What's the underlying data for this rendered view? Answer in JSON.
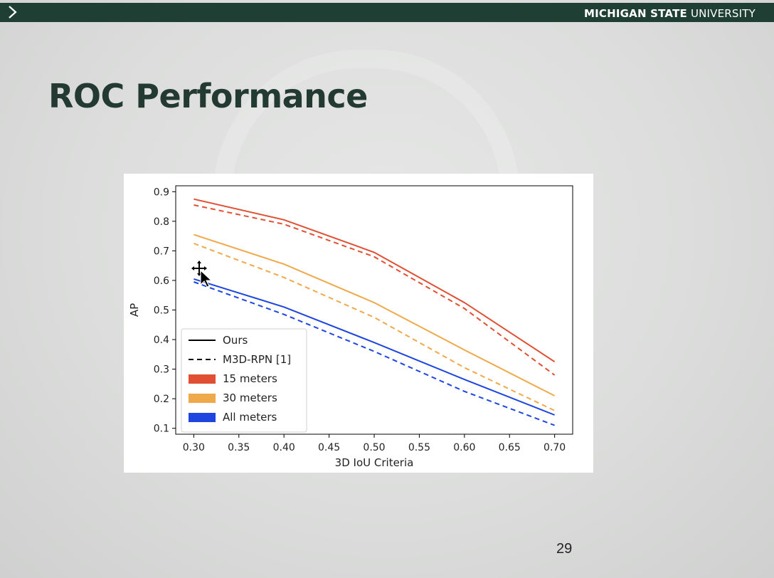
{
  "header": {
    "university_bold": "MICHIGAN STATE",
    "university_light": "UNIVERSITY"
  },
  "slide": {
    "title": "ROC Performance",
    "page_number": "29"
  },
  "chart_data": {
    "type": "line",
    "x": [
      0.3,
      0.4,
      0.5,
      0.6,
      0.7
    ],
    "xticks": [
      "0.30",
      "0.35",
      "0.40",
      "0.45",
      "0.50",
      "0.55",
      "0.60",
      "0.65",
      "0.70"
    ],
    "yticks": [
      "0.1",
      "0.2",
      "0.3",
      "0.4",
      "0.5",
      "0.6",
      "0.7",
      "0.8",
      "0.9"
    ],
    "xlim": [
      0.28,
      0.72
    ],
    "ylim": [
      0.08,
      0.92
    ],
    "xlabel": "3D IoU Criteria",
    "ylabel": "AP",
    "grid": false,
    "legend_position": "lower-left",
    "legend": [
      {
        "label": "Ours",
        "kind": "line-solid",
        "color": "#000000"
      },
      {
        "label": "M3D-RPN [1]",
        "kind": "line-dashed",
        "color": "#000000"
      },
      {
        "label": "15 meters",
        "kind": "patch",
        "color": "#e04f33"
      },
      {
        "label": "30 meters",
        "kind": "patch",
        "color": "#f0a94a"
      },
      {
        "label": "All meters",
        "kind": "patch",
        "color": "#1e45e0"
      }
    ],
    "series": [
      {
        "group": "15 meters",
        "method": "Ours",
        "style": "solid",
        "color": "#e04f33",
        "values": [
          0.875,
          0.805,
          0.695,
          0.525,
          0.325
        ]
      },
      {
        "group": "15 meters",
        "method": "M3D-RPN [1]",
        "style": "dashed",
        "color": "#e04f33",
        "values": [
          0.855,
          0.79,
          0.68,
          0.505,
          0.28
        ]
      },
      {
        "group": "30 meters",
        "method": "Ours",
        "style": "solid",
        "color": "#f0a94a",
        "values": [
          0.755,
          0.655,
          0.525,
          0.365,
          0.21
        ]
      },
      {
        "group": "30 meters",
        "method": "M3D-RPN [1]",
        "style": "dashed",
        "color": "#f0a94a",
        "values": [
          0.725,
          0.61,
          0.475,
          0.305,
          0.16
        ]
      },
      {
        "group": "All meters",
        "method": "Ours",
        "style": "solid",
        "color": "#1e45e0",
        "values": [
          0.605,
          0.51,
          0.39,
          0.265,
          0.145
        ]
      },
      {
        "group": "All meters",
        "method": "M3D-RPN [1]",
        "style": "dashed",
        "color": "#1e45e0",
        "values": [
          0.595,
          0.485,
          0.36,
          0.225,
          0.11
        ]
      }
    ]
  }
}
